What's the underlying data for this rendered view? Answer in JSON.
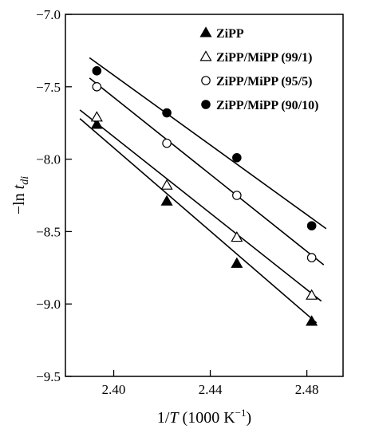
{
  "chart_data": {
    "type": "scatter",
    "title": "",
    "xlabel": {
      "prefix": "1/",
      "var": "T",
      "unit_text": " (1000 K",
      "unit_sup": "−1",
      "suffix": ")"
    },
    "ylabel": {
      "prefix": "−ln ",
      "var": "t",
      "sub": "di"
    },
    "xlim": [
      2.38,
      2.495
    ],
    "ylim": [
      -9.5,
      -7.0
    ],
    "xticks": [
      {
        "value": 2.4,
        "label": "2.40"
      },
      {
        "value": 2.44,
        "label": "2.44"
      },
      {
        "value": 2.48,
        "label": "2.48"
      }
    ],
    "yticks": [
      {
        "value": -7.0,
        "label": "−7.0"
      },
      {
        "value": -7.5,
        "label": "−7.5"
      },
      {
        "value": -8.0,
        "label": "−8.0"
      },
      {
        "value": -8.5,
        "label": "−8.5"
      },
      {
        "value": -9.0,
        "label": "−9.0"
      },
      {
        "value": -9.5,
        "label": "−9.5"
      }
    ],
    "grid": false,
    "legend_position": "top-right",
    "series": [
      {
        "name": "ZiPP",
        "marker": "filled-triangle",
        "x": [
          2.393,
          2.422,
          2.451,
          2.482
        ],
        "y": [
          -7.76,
          -8.29,
          -8.72,
          -9.12
        ],
        "fit_line": {
          "x": [
            2.386,
            2.484
          ],
          "y": [
            -7.72,
            -9.13
          ]
        }
      },
      {
        "name": "ZiPP/MiPP (99/1)",
        "marker": "open-triangle",
        "x": [
          2.393,
          2.422,
          2.451,
          2.482
        ],
        "y": [
          -7.71,
          -8.18,
          -8.54,
          -8.94
        ],
        "fit_line": {
          "x": [
            2.386,
            2.486
          ],
          "y": [
            -7.66,
            -8.98
          ]
        }
      },
      {
        "name": "ZiPP/MiPP (95/5)",
        "marker": "open-circle",
        "x": [
          2.393,
          2.422,
          2.451,
          2.482
        ],
        "y": [
          -7.5,
          -7.89,
          -8.25,
          -8.68
        ],
        "fit_line": {
          "x": [
            2.39,
            2.487
          ],
          "y": [
            -7.44,
            -8.73
          ]
        }
      },
      {
        "name": "ZiPP/MiPP (90/10)",
        "marker": "filled-circle",
        "x": [
          2.393,
          2.422,
          2.451,
          2.482
        ],
        "y": [
          -7.39,
          -7.68,
          -7.99,
          -8.46
        ],
        "fit_line": {
          "x": [
            2.39,
            2.488
          ],
          "y": [
            -7.3,
            -8.48
          ]
        }
      }
    ]
  }
}
